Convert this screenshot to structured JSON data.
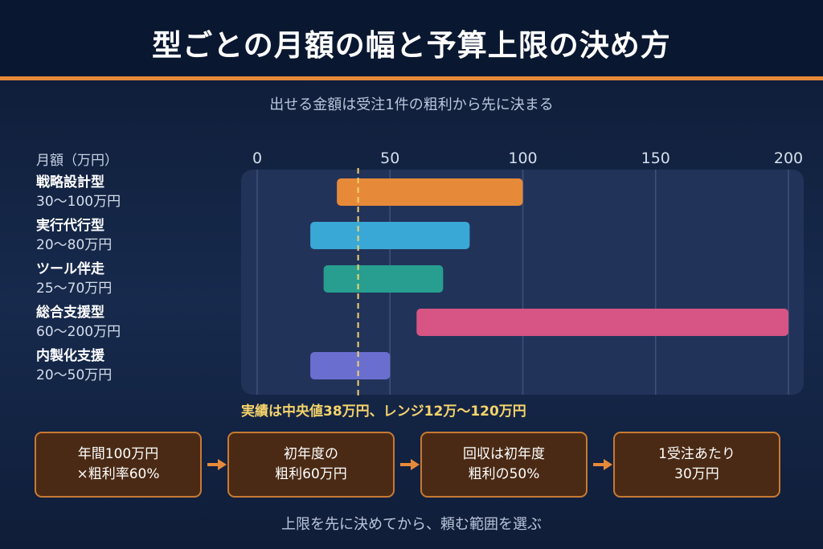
{
  "header": {
    "title": "型ごとの月額の幅と予算上限の決め方",
    "subtitle": "出せる金額は受注1件の粗利から先に決まる"
  },
  "colors": {
    "background": "#13254a",
    "accent": "#e68a3a",
    "plot_bg": "#22335a",
    "reference_line": "#f5d36b",
    "step_fill": "#4a2a14",
    "step_border": "#c77a33"
  },
  "chart_data": {
    "type": "bar",
    "orientation": "horizontal",
    "ylabel": "月額（万円）",
    "xlim": [
      0,
      200
    ],
    "xticks": [
      0,
      50,
      100,
      150,
      200
    ],
    "grid": true,
    "categories": [
      {
        "name": "戦略設計型",
        "range_label": "30〜100万円",
        "start": 30,
        "end": 100,
        "color": "#e68a3a"
      },
      {
        "name": "実行代行型",
        "range_label": "20〜80万円",
        "start": 20,
        "end": 80,
        "color": "#3aa8d6"
      },
      {
        "name": "ツール伴走",
        "range_label": "25〜70万円",
        "start": 25,
        "end": 70,
        "color": "#279e8f"
      },
      {
        "name": "総合支援型",
        "range_label": "60〜200万円",
        "start": 60,
        "end": 200,
        "color": "#d65585"
      },
      {
        "name": "内製化支援",
        "range_label": "20〜50万円",
        "start": 20,
        "end": 50,
        "color": "#6a6fcf"
      }
    ],
    "reference_line": {
      "value": 38
    },
    "annotation": "実績は中央値38万円、レンジ12万〜120万円"
  },
  "steps": [
    {
      "line1": "年間100万円",
      "line2": "×粗利率60%"
    },
    {
      "line1": "初年度の",
      "line2": "粗利60万円"
    },
    {
      "line1": "回収は初年度",
      "line2": "粗利の50%"
    },
    {
      "line1": "1受注あたり",
      "line2": "30万円"
    }
  ],
  "footer": "上限を先に決めてから、頼む範囲を選ぶ"
}
